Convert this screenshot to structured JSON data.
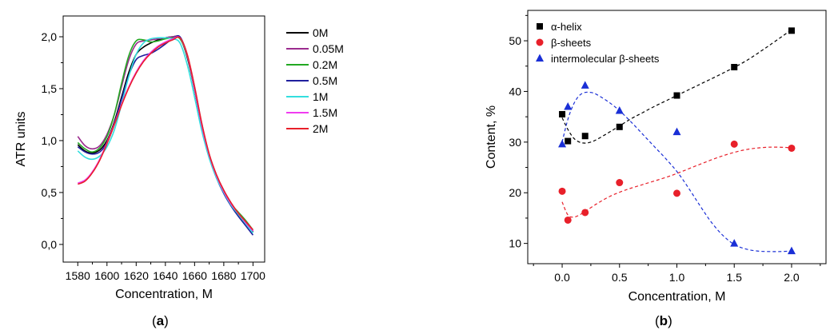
{
  "panel_a": {
    "caption_open": "(",
    "caption_letter": "a",
    "caption_close": ")"
  },
  "panel_b": {
    "caption_open": "(",
    "caption_letter": "b",
    "caption_close": ")"
  },
  "chart_data": [
    {
      "type": "line",
      "xlabel": "Concentration, M",
      "ylabel": "ATR units",
      "xlim": [
        1570,
        1708
      ],
      "ylim": [
        -0.17,
        2.2
      ],
      "xticks": [
        1580,
        1600,
        1620,
        1640,
        1660,
        1680,
        1700
      ],
      "xtick_labels": [
        "1580",
        "1600",
        "1620",
        "1640",
        "1660",
        "1680",
        "1700"
      ],
      "yticks": [
        0.0,
        0.5,
        1.0,
        1.5,
        2.0
      ],
      "ytick_labels": [
        "0,0",
        "0,5",
        "1,0",
        "1,5",
        "2,0"
      ],
      "legend_position": "top-right",
      "series": [
        {
          "name": "0M",
          "color": "#000000",
          "x": [
            1580,
            1585,
            1590,
            1595,
            1600,
            1605,
            1610,
            1615,
            1620,
            1625,
            1630,
            1635,
            1640,
            1645,
            1650,
            1655,
            1660,
            1665,
            1670,
            1675,
            1680,
            1685,
            1690,
            1695,
            1700
          ],
          "y": [
            0.96,
            0.9,
            0.88,
            0.91,
            1.0,
            1.18,
            1.42,
            1.66,
            1.83,
            1.9,
            1.94,
            1.97,
            1.99,
            2.0,
            1.99,
            1.8,
            1.49,
            1.13,
            0.85,
            0.65,
            0.5,
            0.38,
            0.29,
            0.2,
            0.12
          ]
        },
        {
          "name": "0.05M",
          "color": "#9b2b8e",
          "x": [
            1580,
            1585,
            1590,
            1595,
            1600,
            1605,
            1610,
            1615,
            1620,
            1625,
            1630,
            1635,
            1640,
            1645,
            1650,
            1655,
            1660,
            1665,
            1670,
            1675,
            1680,
            1685,
            1690,
            1695,
            1700
          ],
          "y": [
            1.04,
            0.95,
            0.92,
            0.95,
            1.06,
            1.25,
            1.52,
            1.78,
            1.93,
            1.96,
            1.97,
            1.98,
            1.99,
            2.0,
            1.99,
            1.82,
            1.52,
            1.16,
            0.87,
            0.67,
            0.52,
            0.4,
            0.3,
            0.21,
            0.13
          ]
        },
        {
          "name": "0.2M",
          "color": "#22a822",
          "x": [
            1580,
            1585,
            1590,
            1595,
            1600,
            1605,
            1610,
            1615,
            1620,
            1625,
            1630,
            1635,
            1640,
            1645,
            1650,
            1655,
            1660,
            1665,
            1670,
            1675,
            1680,
            1685,
            1690,
            1695,
            1700
          ],
          "y": [
            0.98,
            0.92,
            0.89,
            0.93,
            1.04,
            1.25,
            1.55,
            1.82,
            1.96,
            1.97,
            1.95,
            1.96,
            1.98,
            1.99,
            1.98,
            1.81,
            1.5,
            1.14,
            0.86,
            0.66,
            0.51,
            0.39,
            0.31,
            0.23,
            0.14
          ]
        },
        {
          "name": "0.5M",
          "color": "#1f1f9e",
          "x": [
            1580,
            1585,
            1590,
            1595,
            1600,
            1605,
            1610,
            1615,
            1620,
            1625,
            1630,
            1635,
            1640,
            1645,
            1650,
            1655,
            1660,
            1665,
            1670,
            1675,
            1680,
            1685,
            1690,
            1695,
            1700
          ],
          "y": [
            0.94,
            0.89,
            0.87,
            0.89,
            0.98,
            1.16,
            1.4,
            1.63,
            1.78,
            1.82,
            1.84,
            1.88,
            1.93,
            1.98,
            2.0,
            1.82,
            1.5,
            1.13,
            0.84,
            0.64,
            0.49,
            0.37,
            0.27,
            0.18,
            0.09
          ]
        },
        {
          "name": "1M",
          "color": "#33dede",
          "x": [
            1580,
            1585,
            1590,
            1595,
            1600,
            1605,
            1610,
            1615,
            1620,
            1625,
            1630,
            1635,
            1640,
            1645,
            1650,
            1655,
            1660,
            1665,
            1670,
            1675,
            1680,
            1685,
            1690,
            1695,
            1700
          ],
          "y": [
            0.9,
            0.84,
            0.82,
            0.85,
            0.94,
            1.1,
            1.35,
            1.62,
            1.83,
            1.94,
            1.98,
            1.99,
            1.99,
            1.98,
            1.94,
            1.73,
            1.42,
            1.09,
            0.83,
            0.64,
            0.5,
            0.38,
            0.29,
            0.2,
            0.11
          ]
        },
        {
          "name": "1.5M",
          "color": "#f03cf0",
          "x": [
            1580,
            1585,
            1590,
            1595,
            1600,
            1605,
            1610,
            1615,
            1620,
            1625,
            1630,
            1635,
            1640,
            1645,
            1650,
            1655,
            1660,
            1665,
            1670,
            1675,
            1680,
            1685,
            1690,
            1695,
            1700
          ],
          "y": [
            0.59,
            0.62,
            0.7,
            0.82,
            0.98,
            1.16,
            1.35,
            1.52,
            1.66,
            1.77,
            1.85,
            1.91,
            1.95,
            1.98,
            1.99,
            1.82,
            1.5,
            1.14,
            0.86,
            0.66,
            0.51,
            0.39,
            0.3,
            0.21,
            0.13
          ]
        },
        {
          "name": "2M",
          "color": "#e8202a",
          "x": [
            1580,
            1585,
            1590,
            1595,
            1600,
            1605,
            1610,
            1615,
            1620,
            1625,
            1630,
            1635,
            1640,
            1645,
            1650,
            1655,
            1660,
            1665,
            1670,
            1675,
            1680,
            1685,
            1690,
            1695,
            1700
          ],
          "y": [
            0.58,
            0.61,
            0.69,
            0.81,
            0.97,
            1.15,
            1.34,
            1.51,
            1.65,
            1.76,
            1.84,
            1.9,
            1.94,
            1.97,
            1.99,
            1.83,
            1.52,
            1.16,
            0.87,
            0.67,
            0.52,
            0.4,
            0.3,
            0.22,
            0.14
          ]
        }
      ]
    },
    {
      "type": "scatter",
      "xlabel": "Concentration, M",
      "ylabel": "Content, %",
      "xlim": [
        -0.3,
        2.3
      ],
      "ylim": [
        6,
        56
      ],
      "xticks": [
        0.0,
        0.5,
        1.0,
        1.5,
        2.0
      ],
      "xtick_labels": [
        "0.0",
        "0.5",
        "1.0",
        "1.5",
        "2.0"
      ],
      "yticks": [
        10,
        20,
        30,
        40,
        50
      ],
      "ytick_labels": [
        "10",
        "20",
        "30",
        "40",
        "50"
      ],
      "legend_position": "top-left",
      "series": [
        {
          "name": "α-helix",
          "color": "#000000",
          "marker": "square",
          "x": [
            0.0,
            0.05,
            0.2,
            0.5,
            1.0,
            1.5,
            2.0
          ],
          "y": [
            35.5,
            30.2,
            31.2,
            33.0,
            39.2,
            44.8,
            52.0
          ],
          "fit_x": [
            0.0,
            0.05,
            0.1,
            0.15,
            0.2,
            0.25,
            0.3,
            0.4,
            0.5,
            0.6,
            0.7,
            0.8,
            0.9,
            1.0,
            1.2,
            1.4,
            1.6,
            1.8,
            2.0
          ],
          "fit_y": [
            34.8,
            32.5,
            30.8,
            30.0,
            29.8,
            30.0,
            30.5,
            31.8,
            33.2,
            34.6,
            35.8,
            37.0,
            38.1,
            39.2,
            41.4,
            43.6,
            46.0,
            49.0,
            52.2
          ]
        },
        {
          "name": "β-sheets",
          "color": "#e8202a",
          "marker": "circle",
          "x": [
            0.0,
            0.05,
            0.2,
            0.5,
            1.0,
            1.5,
            2.0
          ],
          "y": [
            20.3,
            14.6,
            16.1,
            22.0,
            19.9,
            29.6,
            28.8
          ],
          "fit_x": [
            0.0,
            0.05,
            0.1,
            0.15,
            0.2,
            0.3,
            0.4,
            0.5,
            0.6,
            0.7,
            0.8,
            0.9,
            1.0,
            1.2,
            1.4,
            1.6,
            1.8,
            2.0
          ],
          "fit_y": [
            18.2,
            15.6,
            15.2,
            15.6,
            16.3,
            17.8,
            19.1,
            20.1,
            20.9,
            21.6,
            22.3,
            23.0,
            23.8,
            25.6,
            27.3,
            28.5,
            29.0,
            28.9
          ]
        },
        {
          "name": "intermolecular β-sheets",
          "color": "#1a2fd6",
          "marker": "triangle",
          "x": [
            0.0,
            0.05,
            0.2,
            0.5,
            1.0,
            1.5,
            2.0
          ],
          "y": [
            29.6,
            37.0,
            41.2,
            36.2,
            32.0,
            10.0,
            8.5
          ],
          "fit_x": [
            0.0,
            0.05,
            0.1,
            0.15,
            0.2,
            0.25,
            0.3,
            0.4,
            0.5,
            0.6,
            0.7,
            0.8,
            0.9,
            1.0,
            1.1,
            1.2,
            1.3,
            1.4,
            1.5,
            1.6,
            1.7,
            1.8,
            1.9,
            2.0
          ],
          "fit_y": [
            30.0,
            34.5,
            37.5,
            39.2,
            39.8,
            39.8,
            39.4,
            38.0,
            36.2,
            34.0,
            31.6,
            29.2,
            26.8,
            24.2,
            21.0,
            17.5,
            14.2,
            11.6,
            9.8,
            8.9,
            8.5,
            8.4,
            8.4,
            8.5
          ]
        }
      ]
    }
  ]
}
